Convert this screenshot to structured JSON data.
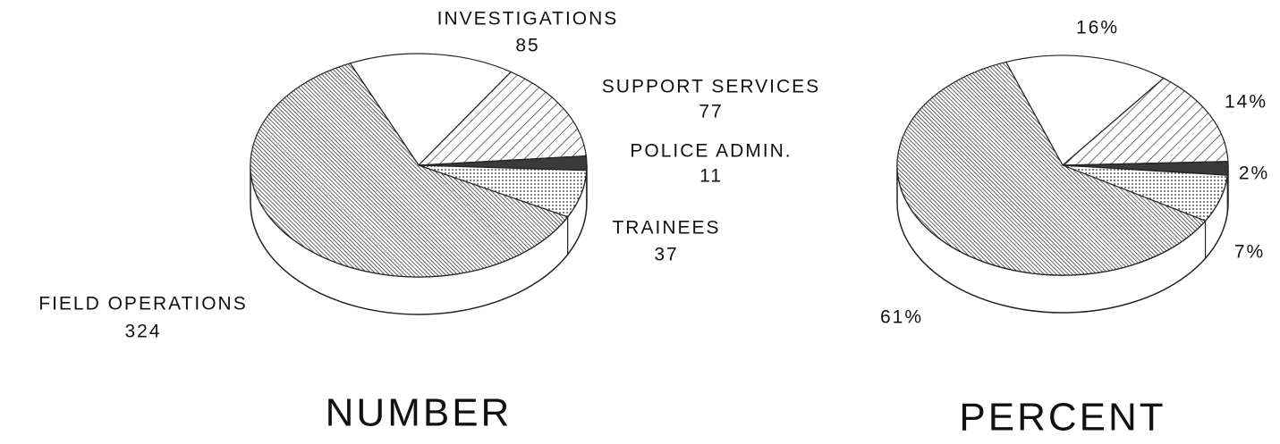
{
  "chart_data": [
    {
      "type": "pie",
      "title": "NUMBER",
      "categories": [
        "INVESTIGATIONS",
        "SUPPORT SERVICES",
        "POLICE ADMIN.",
        "TRAINEES",
        "FIELD OPERATIONS"
      ],
      "values": [
        85,
        77,
        11,
        37,
        324
      ],
      "patterns": [
        "none",
        "hatch",
        "solid",
        "dots",
        "dense-hatch"
      ]
    },
    {
      "type": "pie",
      "title": "PERCENT",
      "values": [
        16,
        14,
        2,
        7,
        61
      ],
      "value_labels": [
        "16%",
        "14%",
        "2%",
        "7%",
        "61%"
      ],
      "patterns": [
        "none",
        "hatch",
        "solid",
        "dots",
        "dense-hatch"
      ]
    }
  ]
}
